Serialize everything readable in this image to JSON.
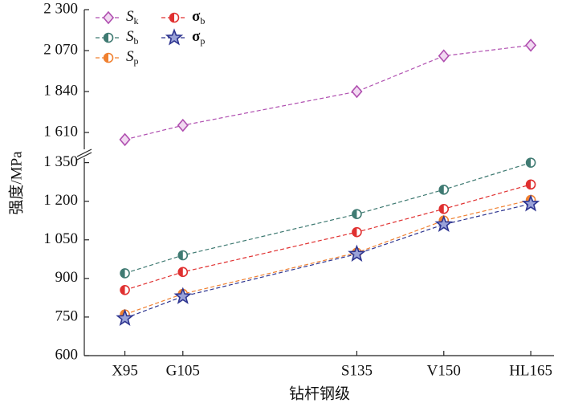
{
  "chart_data": {
    "type": "line",
    "x_label": "钻杆钢级",
    "y_label": "强度/MPa",
    "x": [
      95,
      105,
      135,
      150,
      165
    ],
    "xlim": [
      88,
      169
    ],
    "xticks": [
      {
        "value": 95,
        "label": "X95"
      },
      {
        "value": 105,
        "label": "G105"
      },
      {
        "value": 135,
        "label": "S135"
      },
      {
        "value": 150,
        "label": "V150"
      },
      {
        "value": 165,
        "label": "HL165"
      }
    ],
    "ylim": [
      600,
      1380
    ],
    "yticks": [
      600,
      750,
      900,
      {
        "value": 1050,
        "label": "1 050"
      },
      {
        "value": 1200,
        "label": "1 200"
      },
      {
        "value": 1350,
        "label": "1 350"
      }
    ],
    "ylim_upper": [
      1520,
      2300
    ],
    "yticks_upper": [
      {
        "value": 1610,
        "label": "1 610"
      },
      {
        "value": 1840,
        "label": "1 840"
      },
      {
        "value": 2070,
        "label": "2 070"
      },
      {
        "value": 2300,
        "label": "2 300"
      }
    ],
    "series": [
      {
        "name": "Sk",
        "color": "#b04fb0",
        "marker": "diamond",
        "axis": "upper",
        "values": [
          1570,
          1650,
          1840,
          2040,
          2100
        ]
      },
      {
        "name": "Sb",
        "color": "#3f7a72",
        "marker": "circle",
        "values": [
          920,
          990,
          1150,
          1245,
          1350
        ]
      },
      {
        "name": "Sp",
        "color": "#f08030",
        "marker": "circle",
        "values": [
          760,
          840,
          1000,
          1125,
          1205
        ]
      },
      {
        "name": "σb",
        "color": "#e03030",
        "marker": "circle",
        "values": [
          855,
          925,
          1080,
          1170,
          1265
        ]
      },
      {
        "name": "σp",
        "color": "#2e3590",
        "marker": "star",
        "values": [
          745,
          830,
          995,
          1110,
          1190
        ]
      }
    ]
  }
}
